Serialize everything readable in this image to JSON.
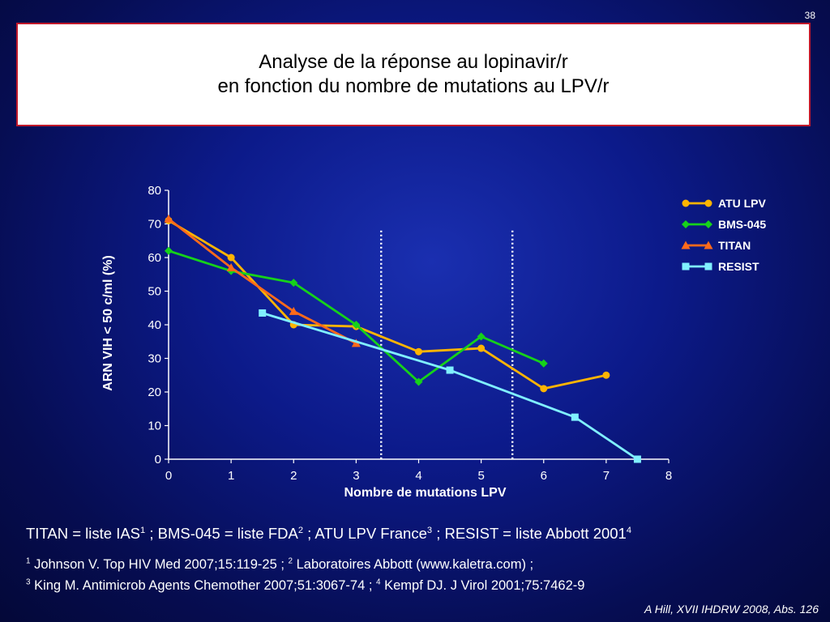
{
  "slide_number": "38",
  "title": {
    "line1": "Analyse de la réponse au lopinavir/r",
    "line2": "en fonction du nombre de mutations au LPV/r"
  },
  "chart_data": {
    "type": "line",
    "xlabel": "Nombre de mutations LPV",
    "ylabel": "ARN VIH < 50 c/ml (%)",
    "xlim": [
      0,
      8
    ],
    "ylim": [
      0,
      80
    ],
    "xticks": [
      "0",
      "1",
      "2",
      "3",
      "4",
      "5",
      "6",
      "7",
      "8"
    ],
    "yticks": [
      "0",
      "10",
      "20",
      "30",
      "40",
      "50",
      "60",
      "70",
      "80"
    ],
    "grid": false,
    "legend_position": "right",
    "vertical_dotted_lines_x": [
      3.4,
      5.5
    ],
    "series": [
      {
        "name": "ATU LPV",
        "color": "#ffb400",
        "marker": "circle",
        "points": [
          [
            0,
            71
          ],
          [
            1,
            60
          ],
          [
            2,
            40
          ],
          [
            3,
            39.5
          ],
          [
            4,
            32
          ],
          [
            5,
            33
          ],
          [
            6,
            21
          ],
          [
            7,
            25
          ]
        ]
      },
      {
        "name": "BMS-045",
        "color": "#16d21a",
        "marker": "diamond",
        "points": [
          [
            0,
            62
          ],
          [
            1,
            56
          ],
          [
            2,
            52.5
          ],
          [
            3,
            40
          ],
          [
            4,
            23
          ],
          [
            5,
            36.5
          ],
          [
            6,
            28.5
          ]
        ]
      },
      {
        "name": "TITAN",
        "color": "#ff6a1a",
        "marker": "triangle",
        "points": [
          [
            0,
            71.5
          ],
          [
            1,
            57
          ],
          [
            2,
            44
          ],
          [
            3,
            34.5
          ]
        ]
      },
      {
        "name": "RESIST",
        "color": "#80f0ff",
        "marker": "square",
        "points": [
          [
            1.5,
            43.5
          ],
          [
            4.5,
            26.5
          ],
          [
            6.5,
            12.5
          ],
          [
            7.5,
            0
          ]
        ]
      }
    ]
  },
  "footnote": {
    "text_1": "TITAN = liste IAS",
    "sup_1": "1",
    "text_2": " ; BMS-045 = liste FDA",
    "sup_2": "2",
    "text_3": " ; ATU LPV France",
    "sup_3": "3",
    "text_4": " ; RESIST = liste Abbott 2001",
    "sup_4": "4"
  },
  "references": {
    "r1_num": "1",
    "r1_text": " Johnson V. Top HIV Med 2007;15:119-25 ; ",
    "r2_num": "2",
    "r2_text": " Laboratoires Abbott (www.kaletra.com) ;",
    "r3_num": "3",
    "r3_text": " King M. Antimicrob Agents Chemother 2007;51:3067-74 ; ",
    "r4_num": "4",
    "r4_text": " Kempf DJ. J Virol 2001;75:7462-9"
  },
  "source": "A Hill, XVII IHDRW 2008, Abs. 126"
}
